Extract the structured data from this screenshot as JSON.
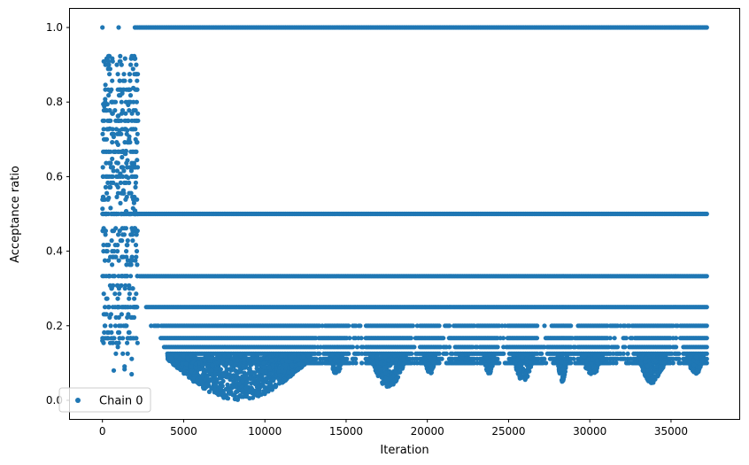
{
  "chart_data": {
    "type": "scatter",
    "xlabel": "Iteration",
    "ylabel": "Acceptance ratio",
    "xlim": [
      -2000,
      39200
    ],
    "ylim": [
      -0.05,
      1.05
    ],
    "x_ticks": [
      0,
      5000,
      10000,
      15000,
      20000,
      25000,
      30000,
      35000
    ],
    "x_tick_labels": [
      "0",
      "5000",
      "10000",
      "15000",
      "20000",
      "25000",
      "30000",
      "35000"
    ],
    "y_ticks": [
      0.0,
      0.2,
      0.4,
      0.6,
      0.8,
      1.0
    ],
    "y_tick_labels": [
      "0.0",
      "0.2",
      "0.4",
      "0.6",
      "0.8",
      "1.0"
    ],
    "grid": false,
    "legend": {
      "placement": "lower-left",
      "entries": [
        "Chain 0"
      ]
    },
    "series": [
      {
        "name": "Chain 0",
        "color": "#1f77b4",
        "marker": "circle",
        "x_range": [
          0,
          37200
        ],
        "bands": [
          {
            "y": 1.0,
            "x": [
              2000,
              37200
            ]
          },
          {
            "y": 0.5,
            "x": [
              2000,
              37200
            ]
          },
          {
            "y": 0.333,
            "x": [
              2300,
              37200
            ]
          },
          {
            "y": 0.25,
            "x": [
              2700,
              37200
            ]
          },
          {
            "y": 0.2,
            "x": [
              3000,
              37200
            ]
          },
          {
            "y": 0.167,
            "x": [
              3500,
              37200
            ]
          },
          {
            "y": 0.143,
            "x": [
              3800,
              37200
            ]
          },
          {
            "y": 0.125,
            "x": [
              4000,
              37200
            ]
          },
          {
            "y": 0.111,
            "x": [
              4500,
              37200
            ]
          },
          {
            "y": 0.1,
            "x": [
              4800,
              37200
            ]
          }
        ],
        "early_phase": {
          "x": [
            0,
            2200
          ],
          "y_range": [
            0.07,
            1.0
          ]
        },
        "dense_clusters": [
          {
            "x": [
              4000,
              12800
            ],
            "y_min": 0.0
          },
          {
            "x": [
              14000,
              14800
            ],
            "y_min": 0.07
          },
          {
            "x": [
              16500,
              18700
            ],
            "y_min": 0.035
          },
          {
            "x": [
              19800,
              20500
            ],
            "y_min": 0.07
          },
          {
            "x": [
              22000,
              22500
            ],
            "y_min": 0.11
          },
          {
            "x": [
              23500,
              24100
            ],
            "y_min": 0.07
          },
          {
            "x": [
              25300,
              26500
            ],
            "y_min": 0.05
          },
          {
            "x": [
              28000,
              28600
            ],
            "y_min": 0.05
          },
          {
            "x": [
              29500,
              30800
            ],
            "y_min": 0.07
          },
          {
            "x": [
              33000,
              34700
            ],
            "y_min": 0.045
          },
          {
            "x": [
              36000,
              37000
            ],
            "y_min": 0.07
          }
        ]
      }
    ]
  }
}
